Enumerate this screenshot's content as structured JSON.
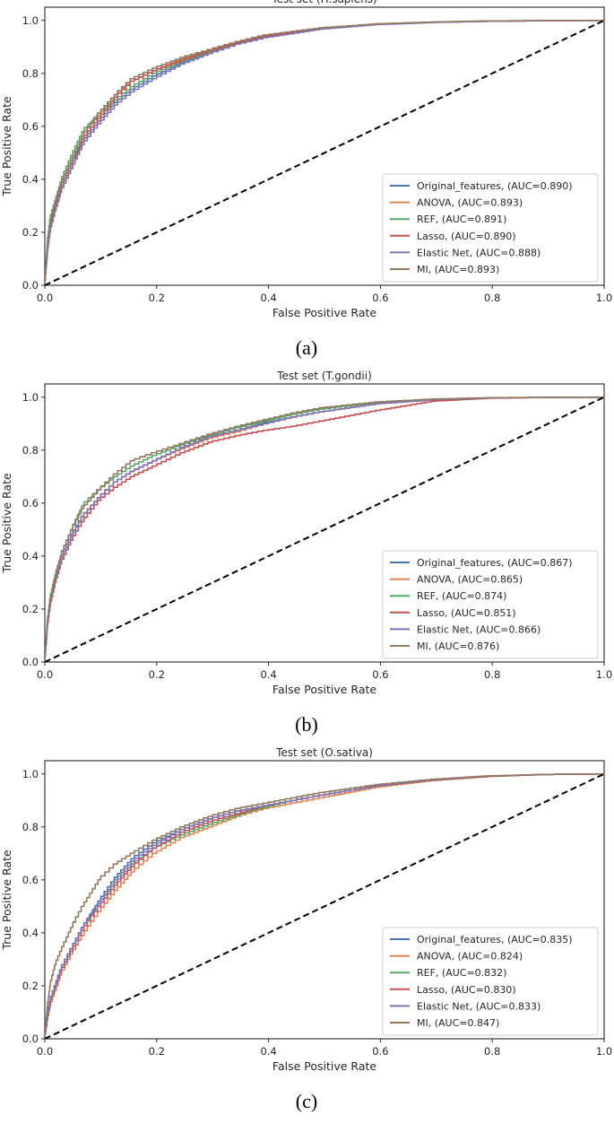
{
  "colors": {
    "series": [
      "#4c72b0",
      "#dd8452",
      "#55a868",
      "#c44e52",
      "#8172b3",
      "#937860"
    ],
    "axes": "#262626",
    "diagonal": "#000000"
  },
  "chart_data": [
    {
      "type": "line",
      "caption": "(a)",
      "title": "Test set (H.sapiens)",
      "xlabel": "False Positive Rate",
      "ylabel": "True Positive Rate",
      "xlim": [
        0,
        1
      ],
      "ylim": [
        0,
        1.05
      ],
      "xticks": [
        "0.0",
        "0.2",
        "0.4",
        "0.6",
        "0.8",
        "1.0"
      ],
      "yticks": [
        "0.0",
        "0.2",
        "0.4",
        "0.6",
        "0.8",
        "1.0"
      ],
      "grid": false,
      "legend_position": "lower-right",
      "diagonal": {
        "style": "dashed",
        "x": [
          0,
          1
        ],
        "y": [
          0,
          1
        ]
      },
      "series": [
        {
          "name": "Original_features, (AUC=0.890)",
          "x": [
            0,
            0.005,
            0.01,
            0.02,
            0.03,
            0.05,
            0.07,
            0.1,
            0.13,
            0.16,
            0.2,
            0.25,
            0.3,
            0.35,
            0.4,
            0.5,
            0.6,
            0.7,
            0.8,
            0.9,
            1.0
          ],
          "y": [
            0,
            0.14,
            0.22,
            0.3,
            0.37,
            0.46,
            0.54,
            0.62,
            0.69,
            0.74,
            0.79,
            0.84,
            0.88,
            0.915,
            0.94,
            0.97,
            0.985,
            0.993,
            0.997,
            0.999,
            1.0
          ]
        },
        {
          "name": "ANOVA, (AUC=0.893)",
          "x": [
            0,
            0.005,
            0.01,
            0.02,
            0.03,
            0.05,
            0.07,
            0.1,
            0.13,
            0.16,
            0.2,
            0.25,
            0.3,
            0.35,
            0.4,
            0.5,
            0.6,
            0.7,
            0.8,
            0.9,
            1.0
          ],
          "y": [
            0,
            0.15,
            0.24,
            0.31,
            0.38,
            0.48,
            0.57,
            0.65,
            0.72,
            0.77,
            0.81,
            0.855,
            0.89,
            0.92,
            0.945,
            0.972,
            0.987,
            0.994,
            0.998,
            0.999,
            1.0
          ]
        },
        {
          "name": "REF, (AUC=0.891)",
          "x": [
            0,
            0.005,
            0.01,
            0.02,
            0.03,
            0.05,
            0.07,
            0.1,
            0.13,
            0.16,
            0.2,
            0.25,
            0.3,
            0.35,
            0.4,
            0.5,
            0.6,
            0.7,
            0.8,
            0.9,
            1.0
          ],
          "y": [
            0,
            0.16,
            0.25,
            0.32,
            0.39,
            0.49,
            0.58,
            0.64,
            0.7,
            0.75,
            0.8,
            0.845,
            0.88,
            0.915,
            0.94,
            0.97,
            0.986,
            0.993,
            0.997,
            0.999,
            1.0
          ]
        },
        {
          "name": "Lasso, (AUC=0.890)",
          "x": [
            0,
            0.005,
            0.01,
            0.02,
            0.03,
            0.05,
            0.07,
            0.1,
            0.13,
            0.16,
            0.2,
            0.25,
            0.3,
            0.35,
            0.4,
            0.5,
            0.6,
            0.7,
            0.8,
            0.9,
            1.0
          ],
          "y": [
            0,
            0.13,
            0.21,
            0.29,
            0.36,
            0.45,
            0.55,
            0.63,
            0.71,
            0.77,
            0.81,
            0.85,
            0.885,
            0.915,
            0.94,
            0.968,
            0.985,
            0.993,
            0.997,
            0.999,
            1.0
          ]
        },
        {
          "name": "Elastic Net, (AUC=0.888)",
          "x": [
            0,
            0.005,
            0.01,
            0.02,
            0.03,
            0.05,
            0.07,
            0.1,
            0.13,
            0.16,
            0.2,
            0.25,
            0.3,
            0.35,
            0.4,
            0.5,
            0.6,
            0.7,
            0.8,
            0.9,
            1.0
          ],
          "y": [
            0,
            0.12,
            0.2,
            0.28,
            0.35,
            0.44,
            0.53,
            0.61,
            0.68,
            0.73,
            0.78,
            0.835,
            0.875,
            0.91,
            0.935,
            0.967,
            0.984,
            0.992,
            0.997,
            0.999,
            1.0
          ]
        },
        {
          "name": "MI, (AUC=0.893)",
          "x": [
            0,
            0.005,
            0.01,
            0.02,
            0.03,
            0.05,
            0.07,
            0.1,
            0.13,
            0.16,
            0.2,
            0.25,
            0.3,
            0.35,
            0.4,
            0.5,
            0.6,
            0.7,
            0.8,
            0.9,
            1.0
          ],
          "y": [
            0,
            0.15,
            0.23,
            0.31,
            0.38,
            0.47,
            0.56,
            0.65,
            0.72,
            0.78,
            0.82,
            0.86,
            0.89,
            0.92,
            0.945,
            0.972,
            0.987,
            0.994,
            0.998,
            0.999,
            1.0
          ]
        }
      ]
    },
    {
      "type": "line",
      "caption": "(b)",
      "title": "Test set (T.gondii)",
      "xlabel": "False Positive Rate",
      "ylabel": "True Positive Rate",
      "xlim": [
        0,
        1
      ],
      "ylim": [
        0,
        1.05
      ],
      "xticks": [
        "0.0",
        "0.2",
        "0.4",
        "0.6",
        "0.8",
        "1.0"
      ],
      "yticks": [
        "0.0",
        "0.2",
        "0.4",
        "0.6",
        "0.8",
        "1.0"
      ],
      "grid": false,
      "legend_position": "lower-right",
      "diagonal": {
        "style": "dashed",
        "x": [
          0,
          1
        ],
        "y": [
          0,
          1
        ]
      },
      "series": [
        {
          "name": "Original_features, (AUC=0.867)",
          "x": [
            0,
            0.005,
            0.01,
            0.02,
            0.03,
            0.05,
            0.07,
            0.1,
            0.13,
            0.16,
            0.2,
            0.25,
            0.3,
            0.35,
            0.4,
            0.45,
            0.5,
            0.6,
            0.7,
            0.8,
            0.9,
            1.0
          ],
          "y": [
            0,
            0.14,
            0.22,
            0.32,
            0.39,
            0.48,
            0.55,
            0.62,
            0.68,
            0.72,
            0.76,
            0.81,
            0.85,
            0.875,
            0.905,
            0.925,
            0.945,
            0.975,
            0.99,
            0.997,
            0.999,
            1.0
          ]
        },
        {
          "name": "ANOVA, (AUC=0.865)",
          "x": [
            0,
            0.005,
            0.01,
            0.02,
            0.03,
            0.05,
            0.07,
            0.1,
            0.13,
            0.16,
            0.2,
            0.25,
            0.3,
            0.35,
            0.4,
            0.45,
            0.5,
            0.6,
            0.7,
            0.8,
            0.9,
            1.0
          ],
          "y": [
            0,
            0.14,
            0.22,
            0.31,
            0.38,
            0.47,
            0.55,
            0.62,
            0.68,
            0.72,
            0.76,
            0.805,
            0.845,
            0.87,
            0.9,
            0.925,
            0.945,
            0.975,
            0.99,
            0.997,
            0.999,
            1.0
          ]
        },
        {
          "name": "REF, (AUC=0.874)",
          "x": [
            0,
            0.005,
            0.01,
            0.02,
            0.03,
            0.05,
            0.07,
            0.1,
            0.13,
            0.16,
            0.2,
            0.25,
            0.3,
            0.35,
            0.4,
            0.45,
            0.5,
            0.6,
            0.7,
            0.8,
            0.9,
            1.0
          ],
          "y": [
            0,
            0.15,
            0.24,
            0.33,
            0.4,
            0.5,
            0.59,
            0.65,
            0.7,
            0.74,
            0.78,
            0.82,
            0.855,
            0.885,
            0.91,
            0.935,
            0.955,
            0.98,
            0.992,
            0.997,
            0.999,
            1.0
          ]
        },
        {
          "name": "Lasso, (AUC=0.851)",
          "x": [
            0,
            0.005,
            0.01,
            0.02,
            0.03,
            0.05,
            0.07,
            0.1,
            0.13,
            0.16,
            0.2,
            0.25,
            0.3,
            0.35,
            0.4,
            0.45,
            0.5,
            0.6,
            0.7,
            0.8,
            0.9,
            1.0
          ],
          "y": [
            0,
            0.13,
            0.21,
            0.3,
            0.37,
            0.46,
            0.53,
            0.61,
            0.66,
            0.7,
            0.74,
            0.79,
            0.83,
            0.855,
            0.875,
            0.89,
            0.91,
            0.95,
            0.985,
            0.996,
            0.999,
            1.0
          ]
        },
        {
          "name": "Elastic Net, (AUC=0.866)",
          "x": [
            0,
            0.005,
            0.01,
            0.02,
            0.03,
            0.05,
            0.07,
            0.1,
            0.13,
            0.16,
            0.2,
            0.25,
            0.3,
            0.35,
            0.4,
            0.45,
            0.5,
            0.6,
            0.7,
            0.8,
            0.9,
            1.0
          ],
          "y": [
            0,
            0.14,
            0.22,
            0.31,
            0.38,
            0.47,
            0.55,
            0.62,
            0.68,
            0.72,
            0.76,
            0.81,
            0.85,
            0.875,
            0.9,
            0.925,
            0.945,
            0.975,
            0.99,
            0.997,
            0.999,
            1.0
          ]
        },
        {
          "name": "MI, (AUC=0.876)",
          "x": [
            0,
            0.005,
            0.01,
            0.02,
            0.03,
            0.05,
            0.07,
            0.1,
            0.13,
            0.16,
            0.2,
            0.25,
            0.3,
            0.35,
            0.4,
            0.45,
            0.5,
            0.6,
            0.7,
            0.8,
            0.9,
            1.0
          ],
          "y": [
            0,
            0.15,
            0.23,
            0.32,
            0.4,
            0.5,
            0.58,
            0.65,
            0.71,
            0.76,
            0.79,
            0.825,
            0.86,
            0.89,
            0.915,
            0.94,
            0.96,
            0.982,
            0.993,
            0.998,
            0.999,
            1.0
          ]
        }
      ]
    },
    {
      "type": "line",
      "caption": "(c)",
      "title": "Test set (O.sativa)",
      "xlabel": "False Positive Rate",
      "ylabel": "True Positive Rate",
      "xlim": [
        0,
        1
      ],
      "ylim": [
        0,
        1.05
      ],
      "xticks": [
        "0.0",
        "0.2",
        "0.4",
        "0.6",
        "0.8",
        "1.0"
      ],
      "yticks": [
        "0.0",
        "0.2",
        "0.4",
        "0.6",
        "0.8",
        "1.0"
      ],
      "grid": false,
      "legend_position": "lower-right",
      "diagonal": {
        "style": "dashed",
        "x": [
          0,
          1
        ],
        "y": [
          0,
          1
        ]
      },
      "series": [
        {
          "name": "Original_features, (AUC=0.835)",
          "x": [
            0,
            0.005,
            0.01,
            0.02,
            0.03,
            0.05,
            0.07,
            0.1,
            0.13,
            0.16,
            0.2,
            0.25,
            0.3,
            0.35,
            0.4,
            0.45,
            0.5,
            0.6,
            0.7,
            0.8,
            0.9,
            1.0
          ],
          "y": [
            0,
            0.08,
            0.14,
            0.2,
            0.26,
            0.34,
            0.42,
            0.52,
            0.61,
            0.68,
            0.74,
            0.79,
            0.83,
            0.86,
            0.88,
            0.9,
            0.92,
            0.955,
            0.978,
            0.992,
            0.998,
            1.0
          ]
        },
        {
          "name": "ANOVA, (AUC=0.824)",
          "x": [
            0,
            0.005,
            0.01,
            0.02,
            0.03,
            0.05,
            0.07,
            0.1,
            0.13,
            0.16,
            0.2,
            0.25,
            0.3,
            0.35,
            0.4,
            0.45,
            0.5,
            0.6,
            0.7,
            0.8,
            0.9,
            1.0
          ],
          "y": [
            0,
            0.07,
            0.12,
            0.18,
            0.24,
            0.32,
            0.39,
            0.48,
            0.56,
            0.63,
            0.7,
            0.76,
            0.8,
            0.84,
            0.87,
            0.89,
            0.91,
            0.95,
            0.975,
            0.99,
            0.998,
            1.0
          ]
        },
        {
          "name": "REF, (AUC=0.832)",
          "x": [
            0,
            0.005,
            0.01,
            0.02,
            0.03,
            0.05,
            0.07,
            0.1,
            0.13,
            0.16,
            0.2,
            0.25,
            0.3,
            0.35,
            0.4,
            0.45,
            0.5,
            0.6,
            0.7,
            0.8,
            0.9,
            1.0
          ],
          "y": [
            0,
            0.08,
            0.14,
            0.2,
            0.26,
            0.34,
            0.42,
            0.51,
            0.59,
            0.66,
            0.72,
            0.77,
            0.81,
            0.845,
            0.875,
            0.9,
            0.92,
            0.955,
            0.978,
            0.992,
            0.998,
            1.0
          ]
        },
        {
          "name": "Lasso, (AUC=0.830)",
          "x": [
            0,
            0.005,
            0.01,
            0.02,
            0.03,
            0.05,
            0.07,
            0.1,
            0.13,
            0.16,
            0.2,
            0.25,
            0.3,
            0.35,
            0.4,
            0.45,
            0.5,
            0.6,
            0.7,
            0.8,
            0.9,
            1.0
          ],
          "y": [
            0,
            0.07,
            0.13,
            0.19,
            0.25,
            0.33,
            0.41,
            0.5,
            0.58,
            0.65,
            0.72,
            0.78,
            0.82,
            0.85,
            0.88,
            0.9,
            0.92,
            0.955,
            0.977,
            0.991,
            0.998,
            1.0
          ]
        },
        {
          "name": "Elastic Net, (AUC=0.833)",
          "x": [
            0,
            0.005,
            0.01,
            0.02,
            0.03,
            0.05,
            0.07,
            0.1,
            0.13,
            0.16,
            0.2,
            0.25,
            0.3,
            0.35,
            0.4,
            0.45,
            0.5,
            0.6,
            0.7,
            0.8,
            0.9,
            1.0
          ],
          "y": [
            0,
            0.08,
            0.14,
            0.2,
            0.26,
            0.34,
            0.42,
            0.51,
            0.6,
            0.67,
            0.73,
            0.79,
            0.83,
            0.86,
            0.88,
            0.9,
            0.92,
            0.955,
            0.978,
            0.992,
            0.998,
            1.0
          ]
        },
        {
          "name": "MI, (AUC=0.847)",
          "x": [
            0,
            0.005,
            0.01,
            0.02,
            0.03,
            0.05,
            0.07,
            0.1,
            0.13,
            0.16,
            0.2,
            0.25,
            0.3,
            0.35,
            0.4,
            0.45,
            0.5,
            0.6,
            0.7,
            0.8,
            0.9,
            1.0
          ],
          "y": [
            0,
            0.12,
            0.2,
            0.28,
            0.33,
            0.42,
            0.5,
            0.6,
            0.66,
            0.7,
            0.75,
            0.8,
            0.84,
            0.87,
            0.89,
            0.91,
            0.93,
            0.96,
            0.98,
            0.993,
            0.998,
            1.0
          ]
        }
      ]
    }
  ]
}
